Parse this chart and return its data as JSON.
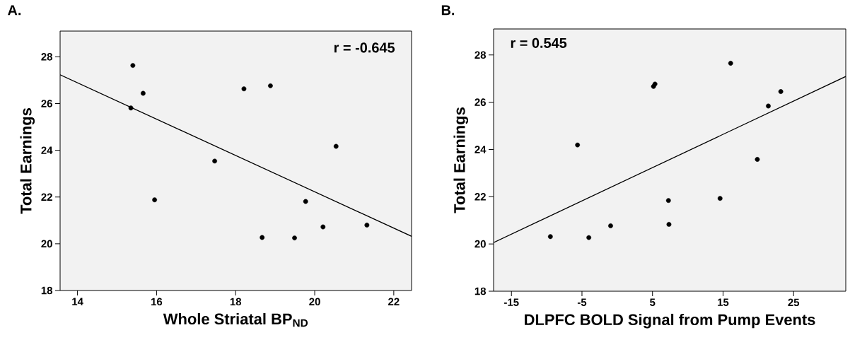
{
  "chart_data": [
    {
      "type": "scatter",
      "title": "A.",
      "xlabel": "Whole Striatal BP$_{ND}$",
      "ylabel": "Total Earnings",
      "annotations": [
        "r = -0.645"
      ],
      "xlim": [
        13.56,
        22.45
      ],
      "ylim": [
        18,
        29.1
      ],
      "xticks": [
        14,
        16,
        18,
        20,
        22
      ],
      "yticks": [
        18,
        20,
        22,
        24,
        26,
        28
      ],
      "series": [
        {
          "color": "#000000",
          "marker": "circle",
          "x": [
            15.4,
            15.66,
            15.35,
            15.95,
            17.47,
            18.21,
            18.88,
            18.67,
            19.49,
            19.77,
            20.21,
            20.54,
            21.32
          ],
          "values": [
            27.63,
            26.44,
            25.81,
            21.88,
            23.54,
            26.63,
            26.76,
            20.27,
            20.25,
            21.81,
            20.72,
            24.17,
            20.8
          ]
        },
        {
          "type": "line",
          "color": "#000000",
          "line_style": "solid",
          "x": [
            13.56,
            22.45
          ],
          "values": [
            27.23,
            20.32
          ]
        }
      ]
    },
    {
      "type": "scatter",
      "title": "B.",
      "xlabel": "DLPFC BOLD Signal from Pump Events",
      "ylabel": "Total Earnings",
      "annotations": [
        "r = 0.545"
      ],
      "xlim": [
        -17.53,
        32.4
      ],
      "ylim": [
        18,
        29.1
      ],
      "xticks": [
        -15,
        -5,
        5,
        15,
        25
      ],
      "yticks": [
        18,
        20,
        22,
        24,
        26,
        28
      ],
      "series": [
        {
          "color": "#000000",
          "marker": "circle",
          "x": [
            -9.48,
            -5.63,
            -4.03,
            -0.94,
            5.14,
            5.35,
            7.26,
            7.33,
            14.58,
            16.08,
            19.86,
            21.42,
            23.19
          ],
          "values": [
            20.31,
            24.19,
            20.27,
            20.77,
            26.67,
            26.77,
            21.84,
            20.83,
            21.93,
            27.65,
            23.58,
            25.84,
            26.45
          ]
        },
        {
          "type": "line",
          "color": "#000000",
          "line_style": "solid",
          "x": [
            -17.53,
            32.4
          ],
          "values": [
            20.06,
            27.09
          ]
        }
      ]
    }
  ]
}
